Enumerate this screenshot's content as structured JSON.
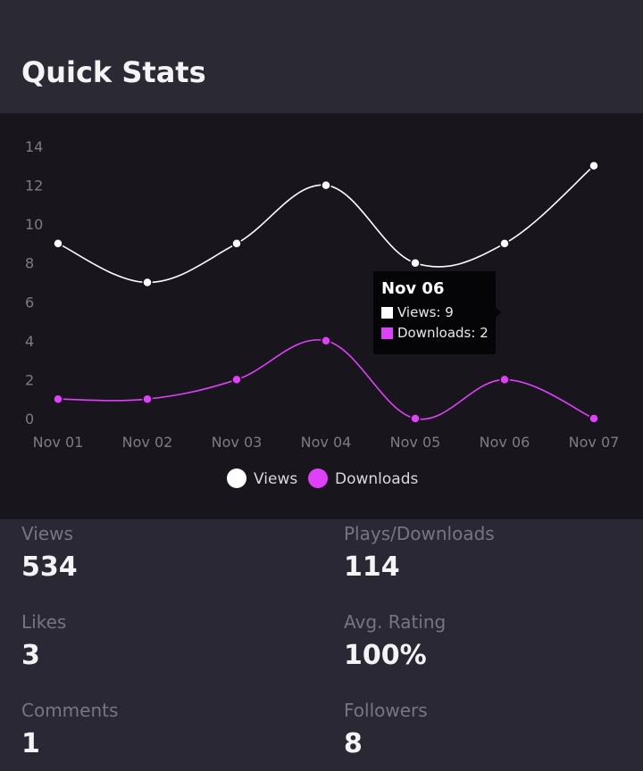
{
  "header": {
    "title": "Quick Stats"
  },
  "chart_data": {
    "type": "line",
    "categories": [
      "Nov 01",
      "Nov 02",
      "Nov 03",
      "Nov 04",
      "Nov 05",
      "Nov 06",
      "Nov 07"
    ],
    "series": [
      {
        "name": "Views",
        "values": [
          9,
          7,
          9,
          12,
          8,
          9,
          13
        ],
        "color": "#ffffff"
      },
      {
        "name": "Downloads",
        "values": [
          1,
          1,
          2,
          4,
          0,
          2,
          0
        ],
        "color": "#e040fb"
      }
    ],
    "y_ticks": [
      0,
      2,
      4,
      6,
      8,
      10,
      12,
      14
    ],
    "ylim": [
      0,
      14
    ],
    "grid": false,
    "legend_position": "bottom",
    "tooltip": {
      "title": "Nov 06",
      "lines": [
        "Views: 9",
        "Downloads: 2"
      ]
    }
  },
  "stats": [
    {
      "label": "Views",
      "value": "534"
    },
    {
      "label": "Plays/Downloads",
      "value": "114"
    },
    {
      "label": "Likes",
      "value": "3"
    },
    {
      "label": "Avg. Rating",
      "value": "100%"
    },
    {
      "label": "Comments",
      "value": "1"
    },
    {
      "label": "Followers",
      "value": "8"
    }
  ]
}
